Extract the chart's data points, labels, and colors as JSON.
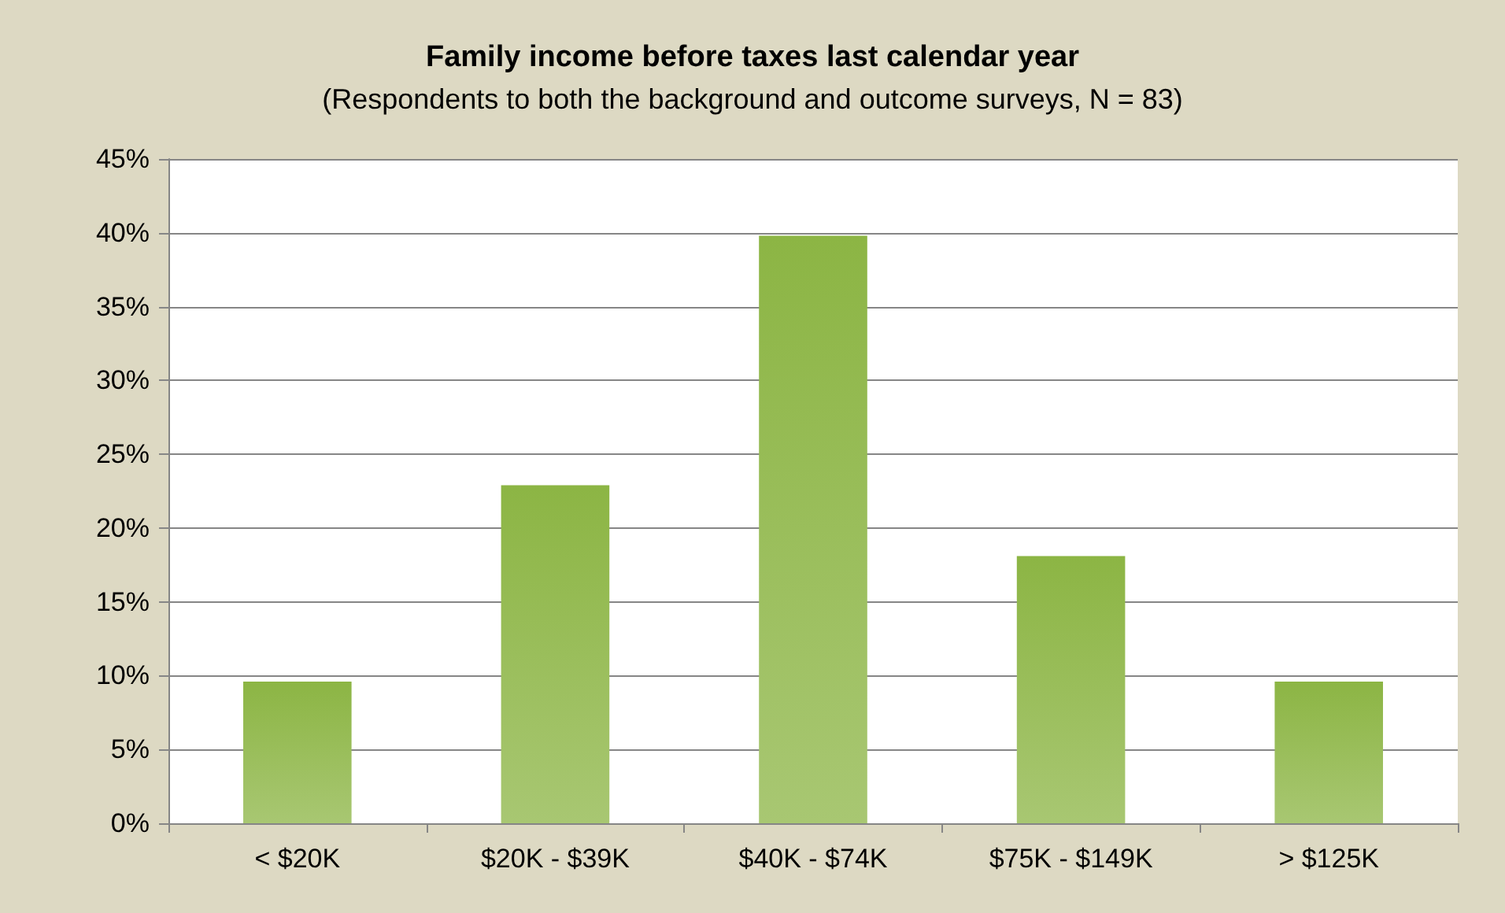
{
  "chart_data": {
    "type": "bar",
    "title": "Family income before taxes last calendar year",
    "subtitle": "(Respondents to both the background and outcome surveys, N = 83)",
    "categories": [
      "< $20K",
      "$20K - $39K",
      "$40K - $74K",
      "$75K - $149K",
      "> $125K"
    ],
    "values": [
      9.6,
      22.9,
      39.8,
      18.1,
      9.6
    ],
    "color": "#8cb544",
    "ylim": [
      0,
      45
    ],
    "yticks": [
      {
        "value": 0,
        "label": "0%"
      },
      {
        "value": 5,
        "label": "5%"
      },
      {
        "value": 10,
        "label": "10%"
      },
      {
        "value": 15,
        "label": "15%"
      },
      {
        "value": 20,
        "label": "20%"
      },
      {
        "value": 25,
        "label": "25%"
      },
      {
        "value": 30,
        "label": "30%"
      },
      {
        "value": 35,
        "label": "35%"
      },
      {
        "value": 40,
        "label": "40%"
      },
      {
        "value": 45,
        "label": "45%"
      }
    ],
    "grid": "y"
  }
}
